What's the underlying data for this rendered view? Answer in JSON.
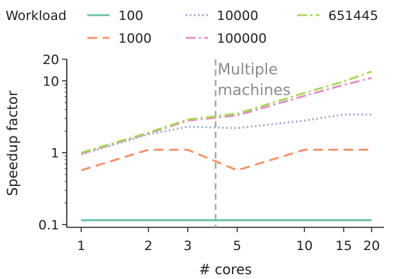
{
  "chart_data": {
    "type": "line",
    "title": "",
    "xlabel": "# cores",
    "ylabel": "Speedup factor",
    "xscale": "log",
    "yscale": "log",
    "xlim": [
      1,
      20
    ],
    "ylim": [
      0.1,
      20
    ],
    "xticks": [
      1,
      2,
      3,
      5,
      10,
      15,
      20
    ],
    "xtick_labels": [
      "1",
      "2",
      "3",
      "5",
      "10",
      "15",
      "20"
    ],
    "yticks": [
      0.1,
      1,
      10,
      20
    ],
    "ytick_labels": [
      "0.1",
      "1",
      "10",
      "20"
    ],
    "grid": false,
    "legend": {
      "title": "Workload",
      "placement": "top"
    },
    "x": [
      1,
      2,
      3,
      5,
      10,
      15,
      20
    ],
    "series": [
      {
        "name": "100",
        "color": "#66c2a5",
        "dash": "solid",
        "values": [
          0.115,
          0.115,
          0.115,
          0.115,
          0.115,
          0.115,
          0.115
        ]
      },
      {
        "name": "1000",
        "color": "#fc8d62",
        "dash": "dashed",
        "values": [
          0.57,
          1.1,
          1.1,
          0.57,
          1.1,
          1.1,
          1.1
        ]
      },
      {
        "name": "10000",
        "color": "#8da0cb",
        "dash": "dotted",
        "values": [
          0.95,
          1.8,
          2.3,
          2.2,
          2.8,
          3.4,
          3.4
        ]
      },
      {
        "name": "100000",
        "color": "#e78ac3",
        "dash": "dashdot",
        "values": [
          0.97,
          1.85,
          2.8,
          3.3,
          6.2,
          8.8,
          11
        ]
      },
      {
        "name": "651445",
        "color": "#a6d854",
        "dash": "dashdot",
        "values": [
          1.0,
          1.9,
          2.9,
          3.5,
          6.8,
          9.8,
          13.5
        ]
      }
    ],
    "annotations": [
      {
        "type": "vline",
        "x": 4,
        "color": "#aaaaaa",
        "dash": "dashed",
        "text": [
          "Multiple",
          "machines"
        ]
      }
    ]
  }
}
